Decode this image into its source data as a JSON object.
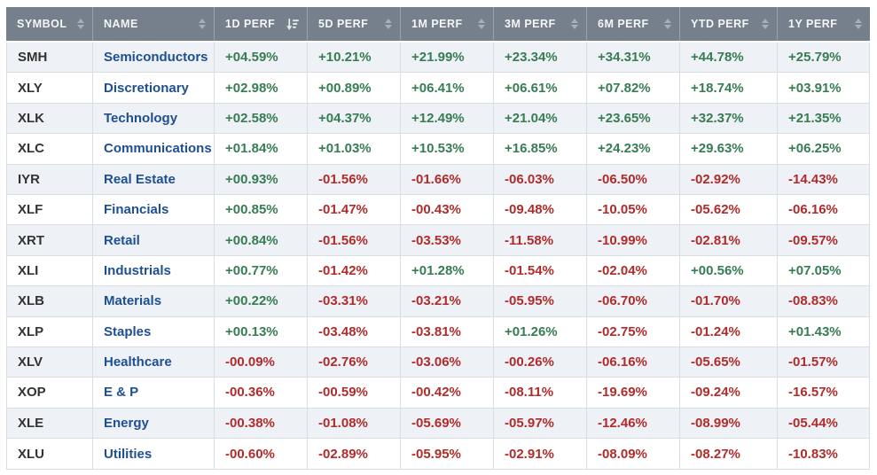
{
  "colors": {
    "header_bg": "#76808D",
    "row_alt_bg": "#EEF1F5",
    "positive": "#377C53",
    "negative": "#B22B2B",
    "name_link": "#1E4F91",
    "symbol_text": "#333333",
    "border": "#D9DEE4"
  },
  "table": {
    "columns": [
      {
        "label": "SYMBOL",
        "sort": "toggle"
      },
      {
        "label": "NAME",
        "sort": "toggle"
      },
      {
        "label": "1D PERF",
        "sort": "desc"
      },
      {
        "label": "5D PERF",
        "sort": "toggle"
      },
      {
        "label": "1M PERF",
        "sort": "toggle"
      },
      {
        "label": "3M PERF",
        "sort": "toggle"
      },
      {
        "label": "6M PERF",
        "sort": "toggle"
      },
      {
        "label": "YTD PERF",
        "sort": "toggle"
      },
      {
        "label": "1Y PERF",
        "sort": "toggle"
      }
    ],
    "rows": [
      {
        "symbol": "SMH",
        "name": "Semiconductors",
        "values": [
          "+04.59%",
          "+10.21%",
          "+21.99%",
          "+23.34%",
          "+34.31%",
          "+44.78%",
          "+25.79%"
        ]
      },
      {
        "symbol": "XLY",
        "name": "Discretionary",
        "values": [
          "+02.98%",
          "+00.89%",
          "+06.41%",
          "+06.61%",
          "+07.82%",
          "+18.74%",
          "+03.91%"
        ]
      },
      {
        "symbol": "XLK",
        "name": "Technology",
        "values": [
          "+02.58%",
          "+04.37%",
          "+12.49%",
          "+21.04%",
          "+23.65%",
          "+32.37%",
          "+21.35%"
        ]
      },
      {
        "symbol": "XLC",
        "name": "Communications",
        "values": [
          "+01.84%",
          "+01.03%",
          "+10.53%",
          "+16.85%",
          "+24.23%",
          "+29.63%",
          "+06.25%"
        ]
      },
      {
        "symbol": "IYR",
        "name": "Real Estate",
        "values": [
          "+00.93%",
          "-01.56%",
          "-01.66%",
          "-06.03%",
          "-06.50%",
          "-02.92%",
          "-14.43%"
        ]
      },
      {
        "symbol": "XLF",
        "name": "Financials",
        "values": [
          "+00.85%",
          "-01.47%",
          "-00.43%",
          "-09.48%",
          "-10.05%",
          "-05.62%",
          "-06.16%"
        ]
      },
      {
        "symbol": "XRT",
        "name": "Retail",
        "values": [
          "+00.84%",
          "-01.56%",
          "-03.53%",
          "-11.58%",
          "-10.99%",
          "-02.81%",
          "-09.57%"
        ]
      },
      {
        "symbol": "XLI",
        "name": "Industrials",
        "values": [
          "+00.77%",
          "-01.42%",
          "+01.28%",
          "-01.54%",
          "-02.04%",
          "+00.56%",
          "+07.05%"
        ]
      },
      {
        "symbol": "XLB",
        "name": "Materials",
        "values": [
          "+00.22%",
          "-03.31%",
          "-03.21%",
          "-05.95%",
          "-06.70%",
          "-01.70%",
          "-08.83%"
        ]
      },
      {
        "symbol": "XLP",
        "name": "Staples",
        "values": [
          "+00.13%",
          "-03.48%",
          "-03.81%",
          "+01.26%",
          "-02.75%",
          "-01.24%",
          "+01.43%"
        ]
      },
      {
        "symbol": "XLV",
        "name": "Healthcare",
        "values": [
          "-00.09%",
          "-02.76%",
          "-03.06%",
          "-00.26%",
          "-06.16%",
          "-05.65%",
          "-01.57%"
        ]
      },
      {
        "symbol": "XOP",
        "name": "E & P",
        "values": [
          "-00.36%",
          "-00.59%",
          "-00.42%",
          "-08.11%",
          "-19.69%",
          "-09.24%",
          "-16.57%"
        ]
      },
      {
        "symbol": "XLE",
        "name": "Energy",
        "values": [
          "-00.38%",
          "-01.08%",
          "-05.69%",
          "-05.97%",
          "-12.46%",
          "-08.99%",
          "-05.44%"
        ]
      },
      {
        "symbol": "XLU",
        "name": "Utilities",
        "values": [
          "-00.60%",
          "-02.89%",
          "-05.95%",
          "-02.91%",
          "-08.09%",
          "-08.27%",
          "-10.83%"
        ]
      }
    ]
  }
}
